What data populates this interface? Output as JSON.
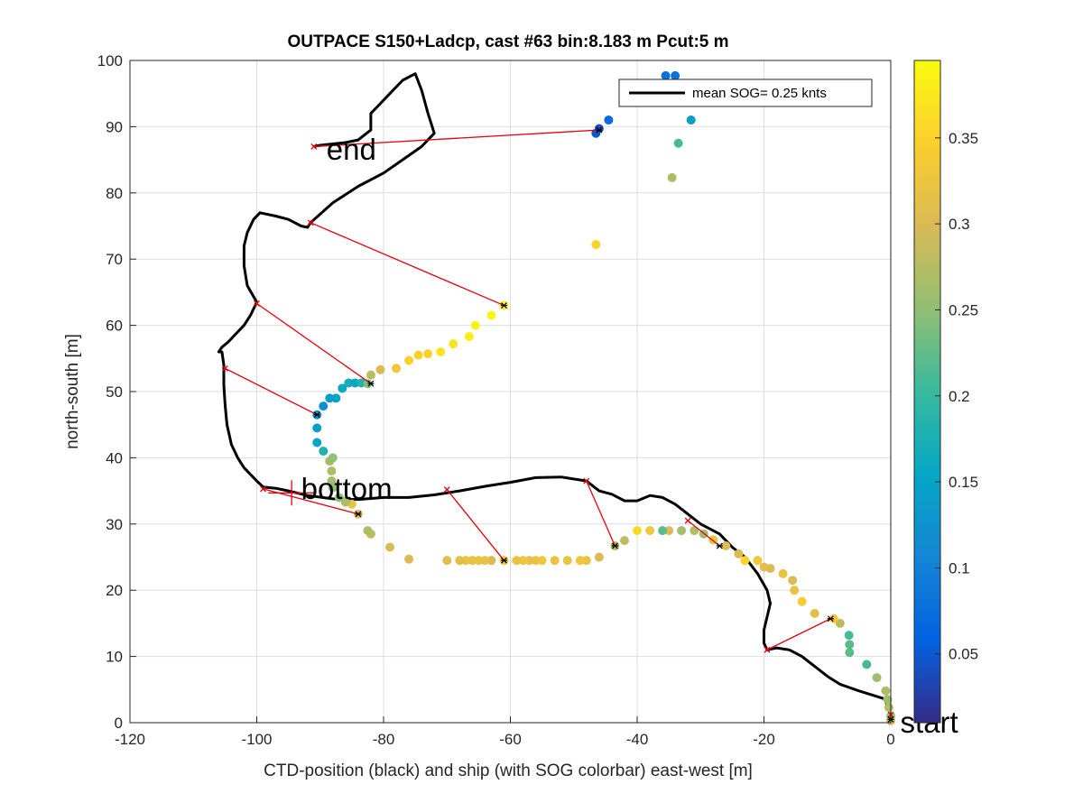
{
  "chart_data": {
    "type": "scatter",
    "title": "OUTPACE S150+Ladcp, cast #63 bin:8.183 m  Pcut:5 m",
    "xlabel": "CTD-position (black) and ship (with SOG colorbar) east-west [m]",
    "ylabel": "north-south [m]",
    "xlim": [
      -120,
      0
    ],
    "ylim": [
      0,
      100
    ],
    "xticks": [
      -120,
      -100,
      -80,
      -60,
      -40,
      -20,
      0
    ],
    "yticks": [
      0,
      10,
      20,
      30,
      40,
      50,
      60,
      70,
      80,
      90,
      100
    ],
    "grid": true,
    "legend": {
      "placement": "top-right",
      "entries": [
        "mean SOG=  0.25 knts"
      ]
    },
    "colorbar": {
      "colormap": "parula",
      "range": [
        0.01,
        0.395
      ],
      "ticks": [
        0.05,
        0.1,
        0.15,
        0.2,
        0.25,
        0.3,
        0.35
      ]
    },
    "annotations": [
      {
        "text": "start",
        "x": 1.5,
        "y": -1.5
      },
      {
        "text": "bottom",
        "x": -93,
        "y": 33.8
      },
      {
        "text": "end",
        "x": -89,
        "y": 85
      }
    ],
    "ctd_track": [
      [
        0,
        0.5
      ],
      [
        0,
        1
      ],
      [
        -0.5,
        2.5
      ],
      [
        -1,
        3.6
      ],
      [
        -3,
        4.2
      ],
      [
        -5,
        4.8
      ],
      [
        -8,
        5.8
      ],
      [
        -10,
        7
      ],
      [
        -12,
        8.5
      ],
      [
        -14,
        10
      ],
      [
        -16,
        11
      ],
      [
        -18,
        11.3
      ],
      [
        -19.5,
        11
      ],
      [
        -20,
        12
      ],
      [
        -20,
        14
      ],
      [
        -19.5,
        16
      ],
      [
        -19,
        18
      ],
      [
        -19.5,
        20
      ],
      [
        -21,
        22.5
      ],
      [
        -23,
        25
      ],
      [
        -25,
        26.5
      ],
      [
        -27,
        28.5
      ],
      [
        -30,
        30
      ],
      [
        -32,
        31.5
      ],
      [
        -34,
        33
      ],
      [
        -36,
        34
      ],
      [
        -38,
        34.3
      ],
      [
        -40,
        33.5
      ],
      [
        -42,
        33.5
      ],
      [
        -44,
        34.5
      ],
      [
        -46,
        35
      ],
      [
        -48,
        36.5
      ],
      [
        -52,
        37.1
      ],
      [
        -56,
        37
      ],
      [
        -60,
        36.3
      ],
      [
        -64,
        35.7
      ],
      [
        -68,
        35
      ],
      [
        -72,
        34.4
      ],
      [
        -76,
        34
      ],
      [
        -80,
        34
      ],
      [
        -84,
        33.7
      ],
      [
        -88,
        33.8
      ],
      [
        -92,
        34.3
      ],
      [
        -95,
        35
      ],
      [
        -97,
        35.4
      ],
      [
        -99,
        35.6
      ],
      [
        -100,
        36.5
      ],
      [
        -102,
        38.5
      ],
      [
        -103,
        40
      ],
      [
        -104,
        42
      ],
      [
        -104.7,
        45
      ],
      [
        -105,
        48
      ],
      [
        -105.2,
        51
      ],
      [
        -105.2,
        54
      ],
      [
        -105.5,
        56
      ],
      [
        -106,
        56
      ],
      [
        -105.5,
        56.7
      ],
      [
        -104.5,
        57.5
      ],
      [
        -103,
        59
      ],
      [
        -102,
        60
      ],
      [
        -101,
        61.5
      ],
      [
        -100,
        63.5
      ],
      [
        -101.5,
        66
      ],
      [
        -102,
        69
      ],
      [
        -102,
        72
      ],
      [
        -101.5,
        74
      ],
      [
        -100.5,
        76
      ],
      [
        -99.5,
        77
      ],
      [
        -97,
        76.5
      ],
      [
        -95,
        76
      ],
      [
        -93,
        75
      ],
      [
        -92,
        74.8
      ],
      [
        -91.5,
        75.5
      ],
      [
        -88,
        78.5
      ],
      [
        -84,
        81
      ],
      [
        -80,
        83
      ],
      [
        -77,
        85
      ],
      [
        -74,
        87
      ],
      [
        -72,
        89
      ],
      [
        -73,
        92
      ],
      [
        -74,
        95.5
      ],
      [
        -75,
        98
      ],
      [
        -77,
        97
      ],
      [
        -79,
        95
      ],
      [
        -81,
        93
      ],
      [
        -82,
        92
      ],
      [
        -82,
        91
      ],
      [
        -82,
        89.5
      ],
      [
        -84,
        88
      ],
      [
        -86,
        87.6
      ],
      [
        -88,
        87.4
      ],
      [
        -90,
        87.2
      ],
      [
        -91,
        87
      ]
    ],
    "ship_points": [
      {
        "x": 0,
        "y": 0.3,
        "sog": 0.29
      },
      {
        "x": 0,
        "y": 1,
        "sog": 0.25
      },
      {
        "x": -0.3,
        "y": 2.3,
        "sog": 0.27
      },
      {
        "x": -0.5,
        "y": 3.5,
        "sog": 0.26
      },
      {
        "x": -0.8,
        "y": 4.8,
        "sog": 0.27
      },
      {
        "x": -2.2,
        "y": 6.8,
        "sog": 0.26
      },
      {
        "x": -3.8,
        "y": 8.8,
        "sog": 0.21
      },
      {
        "x": -6.5,
        "y": 10.6,
        "sog": 0.22
      },
      {
        "x": -6.5,
        "y": 11.8,
        "sog": 0.22
      },
      {
        "x": -6.6,
        "y": 13.2,
        "sog": 0.21
      },
      {
        "x": -8,
        "y": 15,
        "sog": 0.28
      },
      {
        "x": -9,
        "y": 15.7,
        "sog": 0.33
      },
      {
        "x": -12,
        "y": 16.5,
        "sog": 0.31
      },
      {
        "x": -14,
        "y": 18.3,
        "sog": 0.34
      },
      {
        "x": -15.2,
        "y": 20,
        "sog": 0.32
      },
      {
        "x": -15.5,
        "y": 21.5,
        "sog": 0.3
      },
      {
        "x": -17,
        "y": 22.5,
        "sog": 0.32
      },
      {
        "x": -19,
        "y": 23.3,
        "sog": 0.3
      },
      {
        "x": -20,
        "y": 23.5,
        "sog": 0.31
      },
      {
        "x": -21,
        "y": 24.5,
        "sog": 0.33
      },
      {
        "x": -23,
        "y": 24.5,
        "sog": 0.35
      },
      {
        "x": -24,
        "y": 25.5,
        "sog": 0.3
      },
      {
        "x": -26,
        "y": 26.7,
        "sog": 0.3
      },
      {
        "x": -28,
        "y": 27.6,
        "sog": 0.32
      },
      {
        "x": -29.5,
        "y": 28.5,
        "sog": 0.26
      },
      {
        "x": -31,
        "y": 29,
        "sog": 0.27
      },
      {
        "x": -33,
        "y": 29,
        "sog": 0.26
      },
      {
        "x": -35,
        "y": 29,
        "sog": 0.3
      },
      {
        "x": -36,
        "y": 29,
        "sog": 0.22
      },
      {
        "x": -38,
        "y": 29,
        "sog": 0.33
      },
      {
        "x": -40,
        "y": 29,
        "sog": 0.36
      },
      {
        "x": -42,
        "y": 27.5,
        "sog": 0.28
      },
      {
        "x": -43.5,
        "y": 26.7,
        "sog": 0.27
      },
      {
        "x": -46,
        "y": 25,
        "sog": 0.3
      },
      {
        "x": -48,
        "y": 24.5,
        "sog": 0.32
      },
      {
        "x": -49,
        "y": 24.5,
        "sog": 0.33
      },
      {
        "x": -51,
        "y": 24.5,
        "sog": 0.32
      },
      {
        "x": -53,
        "y": 24.5,
        "sog": 0.32
      },
      {
        "x": -55,
        "y": 24.5,
        "sog": 0.33
      },
      {
        "x": -56,
        "y": 24.5,
        "sog": 0.32
      },
      {
        "x": -57,
        "y": 24.5,
        "sog": 0.32
      },
      {
        "x": -58,
        "y": 24.5,
        "sog": 0.33
      },
      {
        "x": -59,
        "y": 24.5,
        "sog": 0.32
      },
      {
        "x": -61,
        "y": 24.5,
        "sog": 0.33
      },
      {
        "x": -63,
        "y": 24.5,
        "sog": 0.3
      },
      {
        "x": -64,
        "y": 24.5,
        "sog": 0.32
      },
      {
        "x": -65,
        "y": 24.5,
        "sog": 0.32
      },
      {
        "x": -66,
        "y": 24.5,
        "sog": 0.32
      },
      {
        "x": -67,
        "y": 24.5,
        "sog": 0.32
      },
      {
        "x": -68,
        "y": 24.5,
        "sog": 0.31
      },
      {
        "x": -70,
        "y": 24.5,
        "sog": 0.31
      },
      {
        "x": -76,
        "y": 24.7,
        "sog": 0.3
      },
      {
        "x": -79,
        "y": 26.5,
        "sog": 0.3
      },
      {
        "x": -82,
        "y": 28.5,
        "sog": 0.28
      },
      {
        "x": -82.5,
        "y": 29,
        "sog": 0.27
      },
      {
        "x": -84,
        "y": 31.5,
        "sog": 0.3
      },
      {
        "x": -85,
        "y": 33,
        "sog": 0.32
      },
      {
        "x": -86,
        "y": 33.3,
        "sog": 0.27
      },
      {
        "x": -87,
        "y": 34,
        "sog": 0.25
      },
      {
        "x": -88,
        "y": 35.5,
        "sog": 0.25
      },
      {
        "x": -88.2,
        "y": 36.5,
        "sog": 0.26
      },
      {
        "x": -88.2,
        "y": 38,
        "sog": 0.27
      },
      {
        "x": -88.5,
        "y": 39.5,
        "sog": 0.26
      },
      {
        "x": -88,
        "y": 40,
        "sog": 0.25
      },
      {
        "x": -89.5,
        "y": 41,
        "sog": 0.18
      },
      {
        "x": -90.5,
        "y": 42.3,
        "sog": 0.15
      },
      {
        "x": -90.5,
        "y": 44.5,
        "sog": 0.14
      },
      {
        "x": -90.5,
        "y": 46.5,
        "sog": 0.13
      },
      {
        "x": -89.5,
        "y": 47.8,
        "sog": 0.12
      },
      {
        "x": -88.5,
        "y": 49,
        "sog": 0.14
      },
      {
        "x": -87.5,
        "y": 49,
        "sog": 0.15
      },
      {
        "x": -86.5,
        "y": 50.5,
        "sog": 0.16
      },
      {
        "x": -85.5,
        "y": 51.3,
        "sog": 0.17
      },
      {
        "x": -84.5,
        "y": 51.3,
        "sog": 0.15
      },
      {
        "x": -83.5,
        "y": 51.3,
        "sog": 0.18
      },
      {
        "x": -82.5,
        "y": 51.2,
        "sog": 0.24
      },
      {
        "x": -82,
        "y": 52.5,
        "sog": 0.28
      },
      {
        "x": -80.5,
        "y": 53.3,
        "sog": 0.3
      },
      {
        "x": -78,
        "y": 53.5,
        "sog": 0.33
      },
      {
        "x": -76,
        "y": 54.7,
        "sog": 0.35
      },
      {
        "x": -74.5,
        "y": 55.5,
        "sog": 0.35
      },
      {
        "x": -73,
        "y": 55.7,
        "sog": 0.35
      },
      {
        "x": -71,
        "y": 56,
        "sog": 0.37
      },
      {
        "x": -69,
        "y": 57.2,
        "sog": 0.37
      },
      {
        "x": -66.5,
        "y": 58.3,
        "sog": 0.38
      },
      {
        "x": -65.5,
        "y": 60,
        "sog": 0.385
      },
      {
        "x": -63,
        "y": 61.5,
        "sog": 0.39
      },
      {
        "x": -61,
        "y": 63,
        "sog": 0.39
      },
      {
        "x": -46.5,
        "y": 72.2,
        "sog": 0.35
      },
      {
        "x": -46.5,
        "y": 89,
        "sog": 0.05
      },
      {
        "x": -46,
        "y": 89.7,
        "sog": 0.04
      },
      {
        "x": -44.5,
        "y": 91,
        "sog": 0.07
      },
      {
        "x": -35.5,
        "y": 97.7,
        "sog": 0.08
      },
      {
        "x": -34,
        "y": 97.7,
        "sog": 0.08
      },
      {
        "x": -31.5,
        "y": 91,
        "sog": 0.14
      },
      {
        "x": -33.5,
        "y": 87.5,
        "sog": 0.21
      },
      {
        "x": -34.5,
        "y": 82.3,
        "sog": 0.27
      }
    ],
    "connectors": [
      {
        "ctd": [
          0,
          1.2
        ],
        "ship": [
          0,
          0.5
        ]
      },
      {
        "ctd": [
          -19.5,
          11
        ],
        "ship": [
          -9.5,
          15.7
        ]
      },
      {
        "ctd": [
          -32,
          30.5
        ],
        "ship": [
          -27,
          26.7
        ]
      },
      {
        "ctd": [
          -48,
          36.5
        ],
        "ship": [
          -43.5,
          26.7
        ]
      },
      {
        "ctd": [
          -70,
          35.2
        ],
        "ship": [
          -61,
          24.5
        ]
      },
      {
        "ctd": [
          -99,
          35.3
        ],
        "ship": [
          -84,
          31.5
        ]
      },
      {
        "ctd": [
          -105,
          53.5
        ],
        "ship": [
          -90.5,
          46.5
        ]
      },
      {
        "ctd": [
          -100,
          63.3
        ],
        "ship": [
          -82,
          51.2
        ]
      },
      {
        "ctd": [
          -91.5,
          75.5
        ],
        "ship": [
          -61,
          63
        ]
      },
      {
        "ctd": [
          -91,
          87
        ],
        "ship": [
          -46,
          89.5
        ]
      }
    ]
  }
}
